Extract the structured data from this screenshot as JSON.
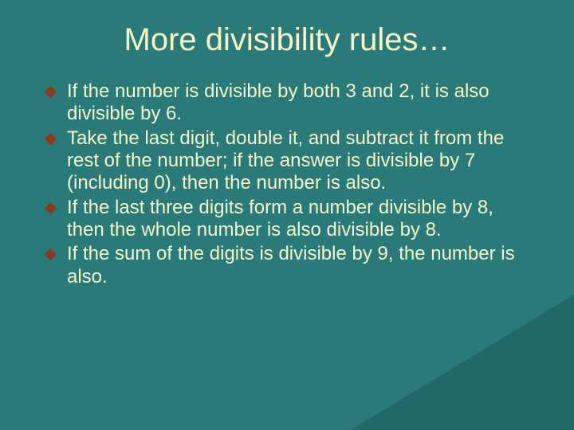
{
  "slide": {
    "title": "More divisibility rules…",
    "bullets": [
      "If the number is divisible by both 3 and 2, it is also divisible by 6.",
      "Take the last digit, double it, and subtract it from the rest of the number; if the answer is divisible by 7 (including 0), then the number is also.",
      "If the last three digits form a number divisible by 8, then the whole number is also divisible by 8.",
      "If the sum of the digits is divisible by 9, the number is also."
    ],
    "colors": {
      "background": "#2b7a7a",
      "corner": "#236868",
      "text": "#f5f5c8",
      "bullet_marker": "#8a3a1a"
    },
    "typography": {
      "title_font": "Arial",
      "title_size_pt": 40,
      "body_font": "Verdana",
      "body_size_pt": 24
    }
  }
}
